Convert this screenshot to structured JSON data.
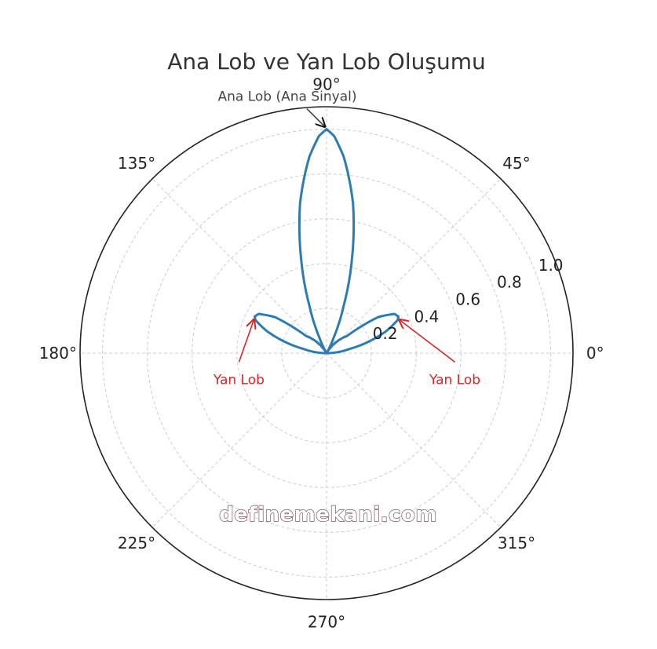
{
  "chart_data": {
    "type": "line",
    "projection": "polar",
    "title": "Ana Lob ve Yan Lob Oluşumu",
    "angle_ticks": [
      {
        "deg": 0,
        "label": "0°"
      },
      {
        "deg": 45,
        "label": "45°"
      },
      {
        "deg": 90,
        "label": "90°"
      },
      {
        "deg": 135,
        "label": "135°"
      },
      {
        "deg": 180,
        "label": "180°"
      },
      {
        "deg": 225,
        "label": "225°"
      },
      {
        "deg": 270,
        "label": "270°"
      },
      {
        "deg": 315,
        "label": "315°"
      }
    ],
    "radial_ticks": [
      {
        "r": 0.2,
        "label": "0.2"
      },
      {
        "r": 0.4,
        "label": "0.4"
      },
      {
        "r": 0.6,
        "label": "0.6"
      },
      {
        "r": 0.8,
        "label": "0.8"
      },
      {
        "r": 1.0,
        "label": "1.0"
      }
    ],
    "rlim": [
      0,
      1.1
    ],
    "grid": true,
    "line_color": "#2e7bb0",
    "series": [
      {
        "theta_deg": [
          0,
          10,
          20,
          25,
          27,
          30,
          35,
          40,
          60,
          65,
          70,
          75,
          80,
          85,
          88,
          90,
          92,
          95,
          100,
          105,
          110,
          115,
          120,
          140,
          145,
          150,
          153,
          155,
          160,
          170,
          180
        ],
        "r": [
          0.0,
          0.1,
          0.28,
          0.35,
          0.36,
          0.35,
          0.28,
          0.12,
          0.0,
          0.07,
          0.22,
          0.44,
          0.68,
          0.88,
          0.97,
          1.0,
          0.97,
          0.88,
          0.68,
          0.44,
          0.22,
          0.07,
          0.0,
          0.12,
          0.28,
          0.35,
          0.36,
          0.35,
          0.28,
          0.1,
          0.0
        ]
      }
    ],
    "annotations": [
      {
        "text": "Ana Lob (Ana Sinyal)",
        "color": "#444444",
        "target_theta_deg": 90,
        "target_r": 1.0
      },
      {
        "text": "Yan Lob",
        "color": "#d62728",
        "target_theta_deg": 27,
        "target_r": 0.36
      },
      {
        "text": "Yan Lob",
        "color": "#d62728",
        "target_theta_deg": 153,
        "target_r": 0.36
      }
    ]
  },
  "watermark": "definemekani.com"
}
